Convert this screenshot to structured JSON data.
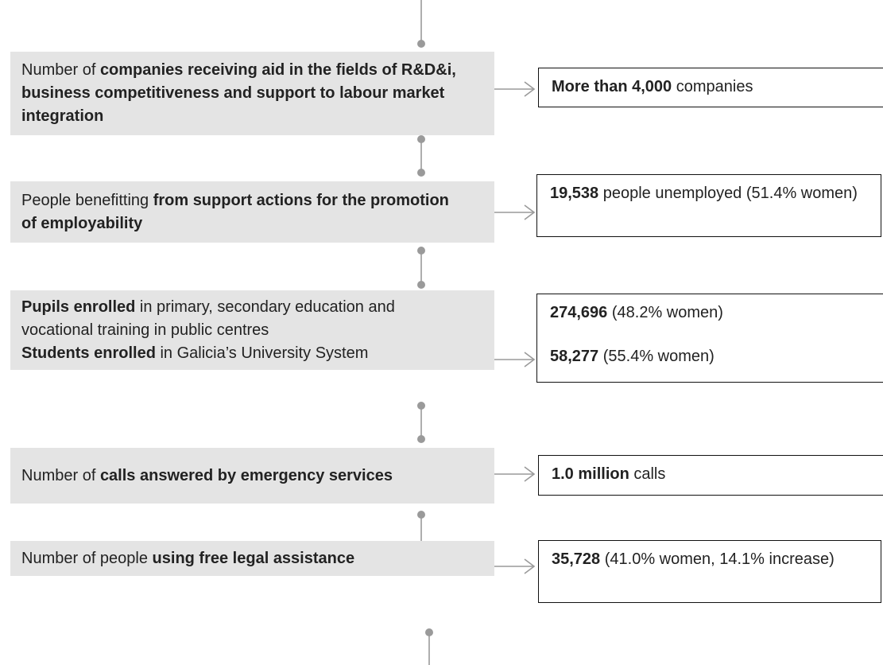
{
  "items": [
    {
      "label": [
        [
          {
            "text": "Number of "
          },
          {
            "text": "companies receiving aid in the fields of R&D&i, business competitiveness and support to labour market integration",
            "bold": true
          }
        ]
      ],
      "result": [
        [
          {
            "text": "More than  4,000",
            "bold": true
          },
          {
            "text": " companies"
          }
        ]
      ]
    },
    {
      "label": [
        [
          {
            "text": "People benefitting "
          },
          {
            "text": "from support actions for the promotion of employability",
            "bold": true
          }
        ]
      ],
      "result": [
        [
          {
            "text": "19,538",
            "bold": true
          },
          {
            "text": " people unemployed (51.4% women)"
          }
        ]
      ]
    },
    {
      "label": [
        [
          {
            "text": "Pupils enrolled",
            "bold": true
          },
          {
            "text": " in primary, secondary education and vocational training in public centres"
          }
        ],
        [
          {
            "text": "Students enrolled",
            "bold": true
          },
          {
            "text": " in Galicia’s University System"
          }
        ]
      ],
      "result": [
        [
          {
            "text": "274,696",
            "bold": true
          },
          {
            "text": " (48.2% women)"
          }
        ],
        [
          {
            "text": "58,277",
            "bold": true
          },
          {
            "text": " (55.4% women)"
          }
        ]
      ]
    },
    {
      "label": [
        [
          {
            "text": "Number of "
          },
          {
            "text": "calls answered by emergency services",
            "bold": true
          }
        ]
      ],
      "result": [
        [
          {
            "text": "1.0 million",
            "bold": true
          },
          {
            "text": " calls"
          }
        ]
      ]
    },
    {
      "label": [
        [
          {
            "text": "Number of people "
          },
          {
            "text": "using free legal assistance",
            "bold": true
          }
        ]
      ],
      "result": [
        [
          {
            "text": "35,728",
            "bold": true
          },
          {
            "text": " (41.0% women, 14.1% increase)"
          }
        ]
      ]
    }
  ]
}
